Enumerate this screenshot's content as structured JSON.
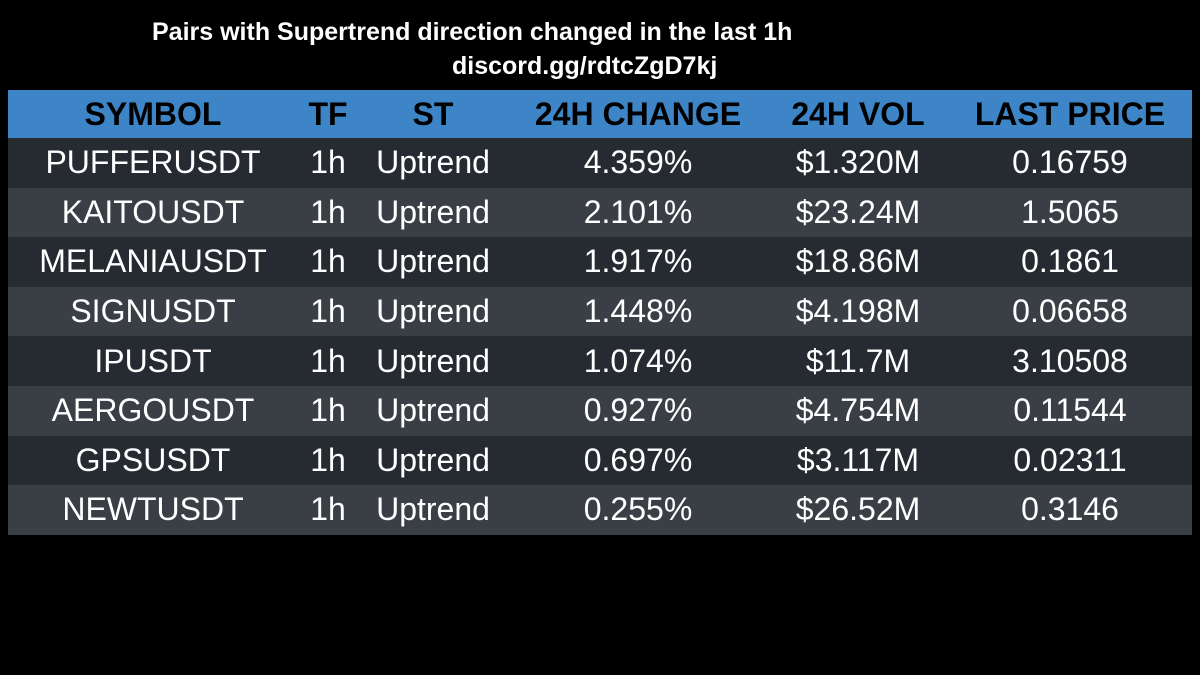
{
  "header": {
    "title": "Pairs with Supertrend direction changed in the last 1h",
    "subtitle": "discord.gg/rdtcZgD7kj"
  },
  "table": {
    "columns": [
      "SYMBOL",
      "TF",
      "ST",
      "24H CHANGE",
      "24H VOL",
      "LAST PRICE"
    ],
    "rows": [
      [
        "PUFFERUSDT",
        "1h",
        "Uptrend",
        "4.359%",
        "$1.320M",
        "0.16759"
      ],
      [
        "KAITOUSDT",
        "1h",
        "Uptrend",
        "2.101%",
        "$23.24M",
        "1.5065"
      ],
      [
        "MELANIAUSDT",
        "1h",
        "Uptrend",
        "1.917%",
        "$18.86M",
        "0.1861"
      ],
      [
        "SIGNUSDT",
        "1h",
        "Uptrend",
        "1.448%",
        "$4.198M",
        "0.06658"
      ],
      [
        "IPUSDT",
        "1h",
        "Uptrend",
        "1.074%",
        "$11.7M",
        "3.10508"
      ],
      [
        "AERGOUSDT",
        "1h",
        "Uptrend",
        "0.927%",
        "$4.754M",
        "0.11544"
      ],
      [
        "GPSUSDT",
        "1h",
        "Uptrend",
        "0.697%",
        "$3.117M",
        "0.02311"
      ],
      [
        "NEWTUSDT",
        "1h",
        "Uptrend",
        "0.255%",
        "$26.52M",
        "0.3146"
      ]
    ]
  }
}
